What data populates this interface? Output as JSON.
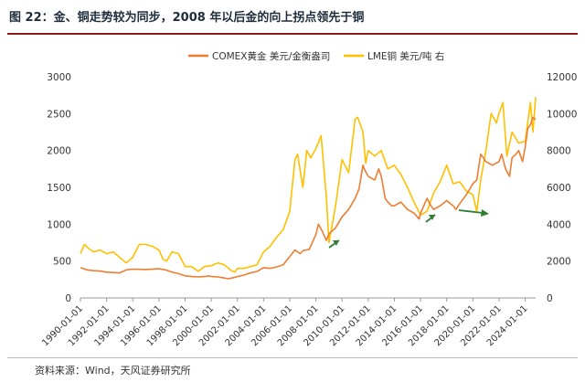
{
  "figure": {
    "title": "图 22：金、铜走势较为同步，2008 年以后金的向上拐点领先于铜",
    "source": "资料来源：Wind，天风证券研究所"
  },
  "chart_data": {
    "type": "line",
    "legend": {
      "placement": "top-center",
      "entries": [
        "COMEX黄金 美元/金衡盎司",
        "LME铜 美元/吨 右"
      ]
    },
    "x_tick_labels": [
      "1990-01-01",
      "1992-01-01",
      "1994-01-01",
      "1996-01-01",
      "1998-01-01",
      "2000-01-01",
      "2002-01-01",
      "2004-01-01",
      "2006-01-01",
      "2008-01-01",
      "2010-01-01",
      "2012-01-01",
      "2014-01-01",
      "2016-01-01",
      "2018-01-01",
      "2020-01-01",
      "2022-01-01",
      "2024-01-01"
    ],
    "x_range": [
      1990.0,
      2024.8
    ],
    "y_left": {
      "ticks": [
        0,
        500,
        1000,
        1500,
        2000,
        2500,
        3000
      ],
      "ylim": [
        0,
        3000
      ]
    },
    "y_right": {
      "ticks": [
        0,
        2000,
        4000,
        6000,
        8000,
        10000,
        12000
      ],
      "ylim": [
        0,
        12000
      ]
    },
    "grid": false,
    "series": [
      {
        "name": "COMEX黄金 美元/金衡盎司",
        "axis": "left",
        "color": "#ed7d31",
        "x": [
          1990.0,
          1990.5,
          1991.0,
          1991.5,
          1992.0,
          1992.5,
          1993.0,
          1993.5,
          1994.0,
          1995.0,
          1996.0,
          1996.5,
          1997.0,
          1997.5,
          1998.0,
          1998.5,
          1999.0,
          1999.5,
          1999.8,
          2000.0,
          2000.5,
          2001.0,
          2001.3,
          2001.7,
          2002.0,
          2002.5,
          2003.0,
          2003.5,
          2004.0,
          2004.5,
          2005.0,
          2005.5,
          2006.0,
          2006.4,
          2006.8,
          2007.0,
          2007.5,
          2008.0,
          2008.2,
          2008.5,
          2008.8,
          2009.0,
          2009.5,
          2010.0,
          2010.5,
          2011.0,
          2011.3,
          2011.6,
          2011.7,
          2012.0,
          2012.5,
          2012.8,
          2013.0,
          2013.3,
          2013.5,
          2013.8,
          2014.0,
          2014.5,
          2015.0,
          2015.5,
          2015.9,
          2016.0,
          2016.5,
          2016.8,
          2017.0,
          2017.5,
          2018.0,
          2018.5,
          2018.7,
          2019.0,
          2019.5,
          2020.0,
          2020.3,
          2020.6,
          2020.8,
          2021.0,
          2021.5,
          2022.0,
          2022.2,
          2022.5,
          2022.8,
          2023.0,
          2023.3,
          2023.5,
          2023.8,
          2024.0,
          2024.2,
          2024.4,
          2024.6,
          2024.8
        ],
        "values": [
          410,
          380,
          370,
          365,
          350,
          345,
          340,
          380,
          390,
          385,
          395,
          380,
          350,
          330,
          300,
          290,
          285,
          290,
          300,
          290,
          285,
          270,
          260,
          275,
          290,
          310,
          340,
          360,
          410,
          400,
          420,
          450,
          560,
          650,
          600,
          640,
          660,
          860,
          1000,
          900,
          780,
          870,
          950,
          1100,
          1200,
          1350,
          1480,
          1800,
          1750,
          1650,
          1600,
          1750,
          1650,
          1350,
          1300,
          1250,
          1250,
          1300,
          1200,
          1150,
          1070,
          1150,
          1350,
          1250,
          1200,
          1250,
          1320,
          1250,
          1200,
          1280,
          1400,
          1550,
          1600,
          1950,
          1900,
          1850,
          1800,
          1850,
          1950,
          1750,
          1650,
          1900,
          1950,
          2000,
          1850,
          2050,
          2300,
          2350,
          2450,
          2420
        ]
      },
      {
        "name": "LME铜 美元/吨 右",
        "axis": "right",
        "color": "#ffc000",
        "x": [
          1990.0,
          1990.3,
          1990.6,
          1991.0,
          1991.5,
          1992.0,
          1992.5,
          1993.0,
          1993.5,
          1994.0,
          1994.5,
          1995.0,
          1995.5,
          1996.0,
          1996.3,
          1996.6,
          1997.0,
          1997.5,
          1998.0,
          1998.5,
          1999.0,
          1999.5,
          2000.0,
          2000.5,
          2001.0,
          2001.5,
          2001.8,
          2002.0,
          2002.5,
          2003.0,
          2003.5,
          2004.0,
          2004.5,
          2005.0,
          2005.5,
          2006.0,
          2006.4,
          2006.6,
          2007.0,
          2007.3,
          2007.6,
          2008.0,
          2008.4,
          2008.8,
          2009.0,
          2009.5,
          2010.0,
          2010.5,
          2011.0,
          2011.2,
          2011.6,
          2011.8,
          2012.0,
          2012.5,
          2013.0,
          2013.5,
          2014.0,
          2014.5,
          2015.0,
          2015.5,
          2016.0,
          2016.5,
          2017.0,
          2017.5,
          2018.0,
          2018.5,
          2019.0,
          2019.5,
          2020.0,
          2020.3,
          2020.6,
          2021.0,
          2021.4,
          2021.8,
          2022.0,
          2022.3,
          2022.6,
          2023.0,
          2023.5,
          2024.0,
          2024.4,
          2024.6,
          2024.8
        ],
        "values": [
          2400,
          2900,
          2700,
          2500,
          2600,
          2400,
          2500,
          2200,
          1900,
          2200,
          2900,
          2900,
          2800,
          2600,
          2100,
          2000,
          2500,
          2400,
          1700,
          1700,
          1450,
          1700,
          1750,
          1900,
          1800,
          1500,
          1400,
          1600,
          1600,
          1700,
          1800,
          2500,
          2800,
          3300,
          3700,
          4700,
          7500,
          7800,
          6000,
          8000,
          7600,
          8100,
          8800,
          5500,
          3000,
          5000,
          7500,
          6800,
          9700,
          9800,
          9000,
          7300,
          8000,
          7700,
          8000,
          7000,
          7200,
          6700,
          6000,
          5200,
          4500,
          4700,
          5700,
          6300,
          7200,
          6200,
          6300,
          5800,
          5600,
          4700,
          6400,
          8000,
          10000,
          9500,
          10000,
          10600,
          7700,
          9000,
          8400,
          8500,
          10600,
          9000,
          10900
        ]
      }
    ]
  }
}
